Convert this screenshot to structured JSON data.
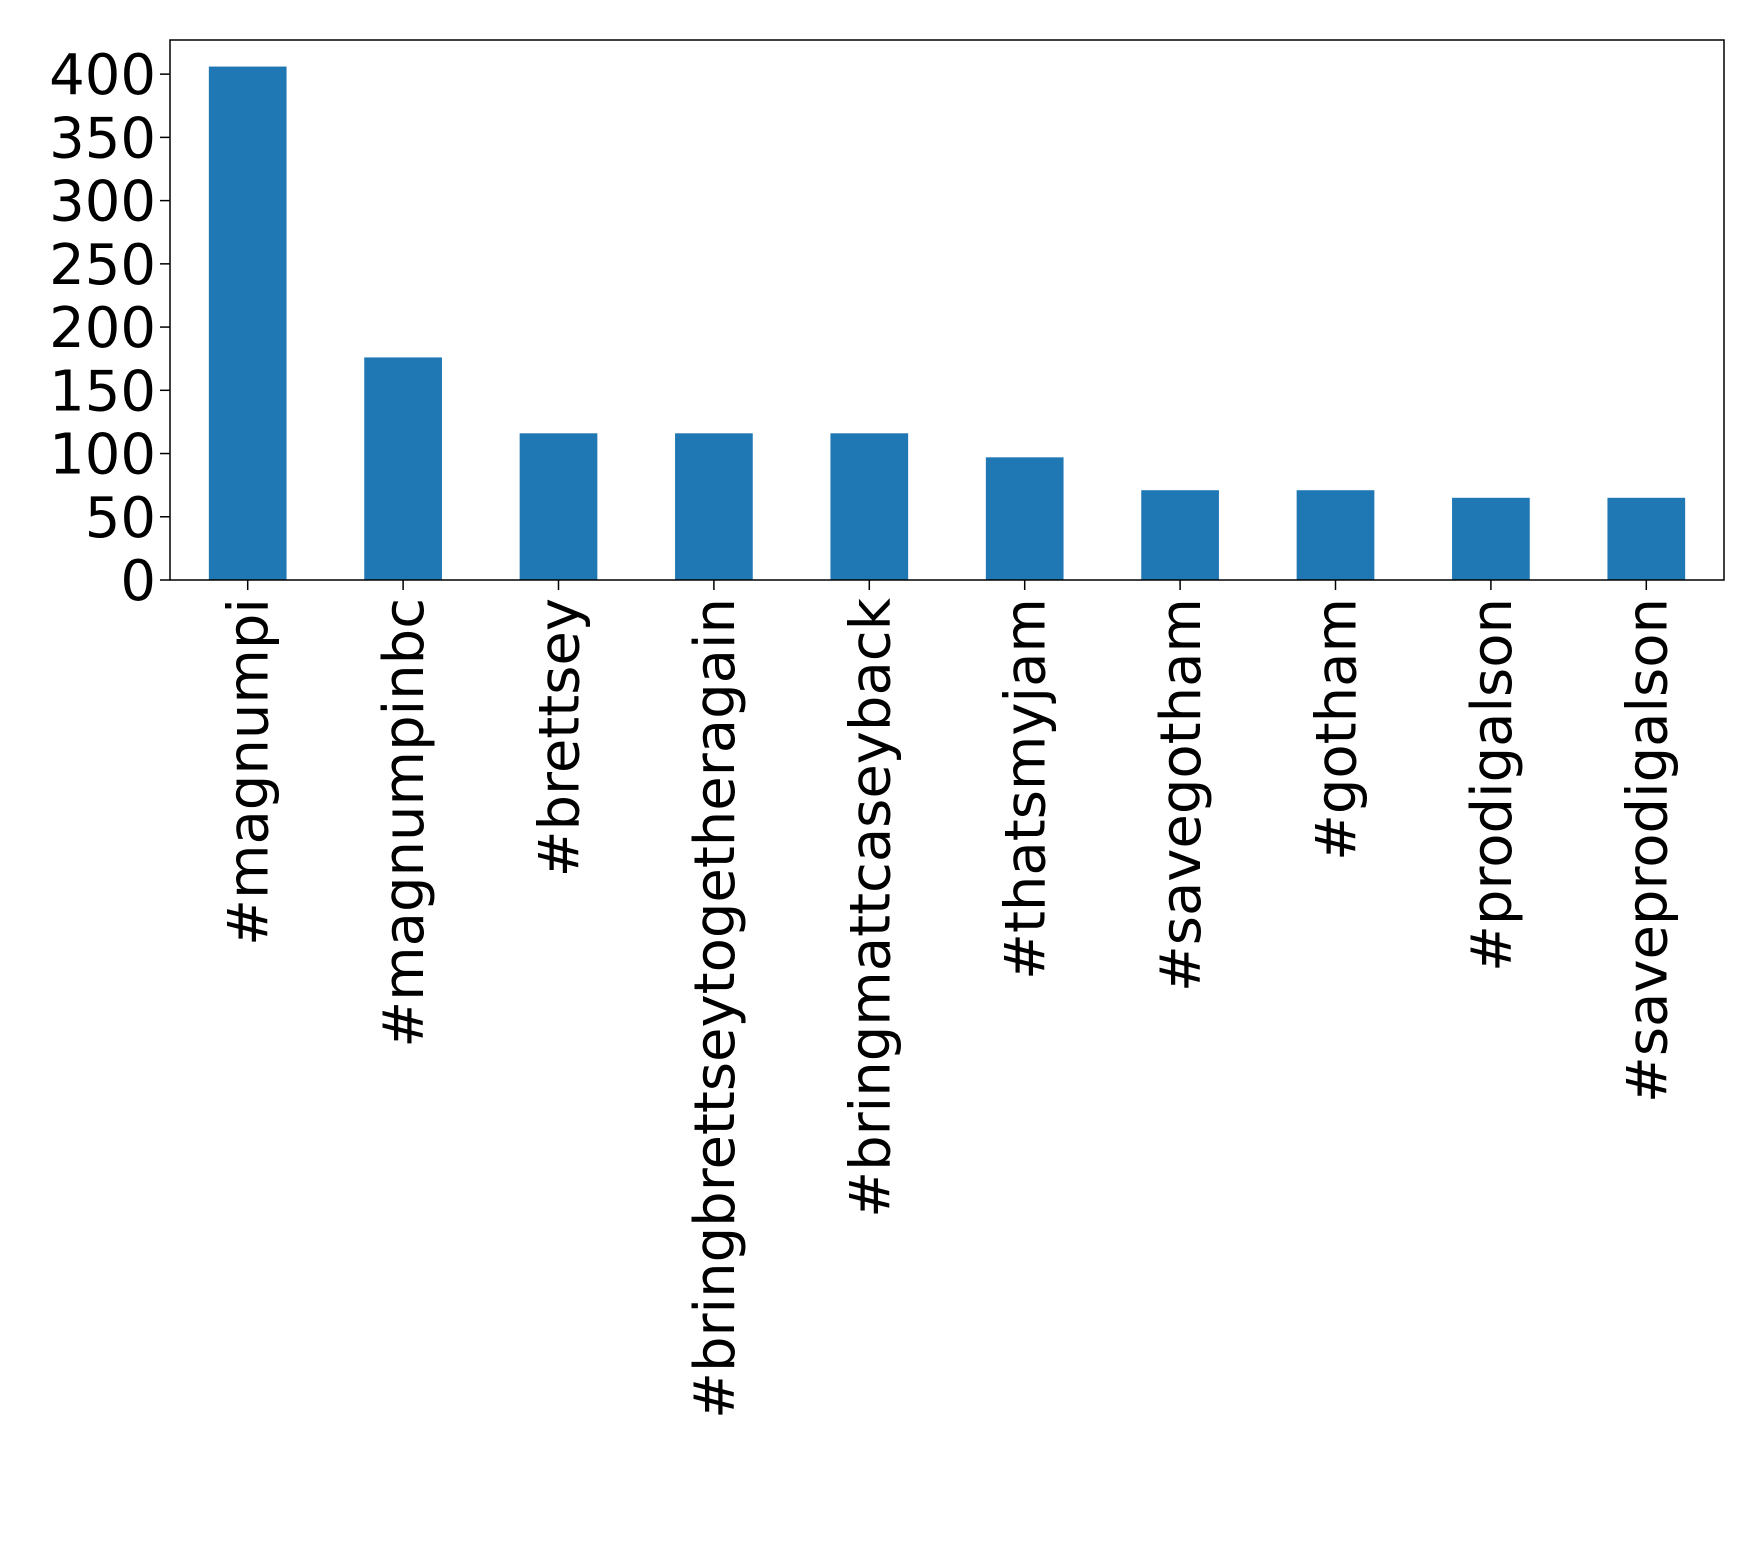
{
  "chart_data": {
    "type": "bar",
    "title": "",
    "xlabel": "",
    "ylabel": "",
    "categories": [
      "#magnumpi",
      "#magnumpinbc",
      "#brettsey",
      "#bringbrettseytogetheragain",
      "#bringmattcaseyback",
      "#thatsmyjam",
      "#savegotham",
      "#gotham",
      "#prodigalson",
      "#saveprodigalson"
    ],
    "values": [
      406,
      176,
      116,
      116,
      116,
      97,
      71,
      71,
      65,
      65
    ],
    "ylim": [
      0,
      427
    ],
    "yticks": [
      0,
      50,
      100,
      150,
      200,
      250,
      300,
      350,
      400
    ],
    "grid": false,
    "legend": "none",
    "bar_color": "#1f77b4"
  }
}
